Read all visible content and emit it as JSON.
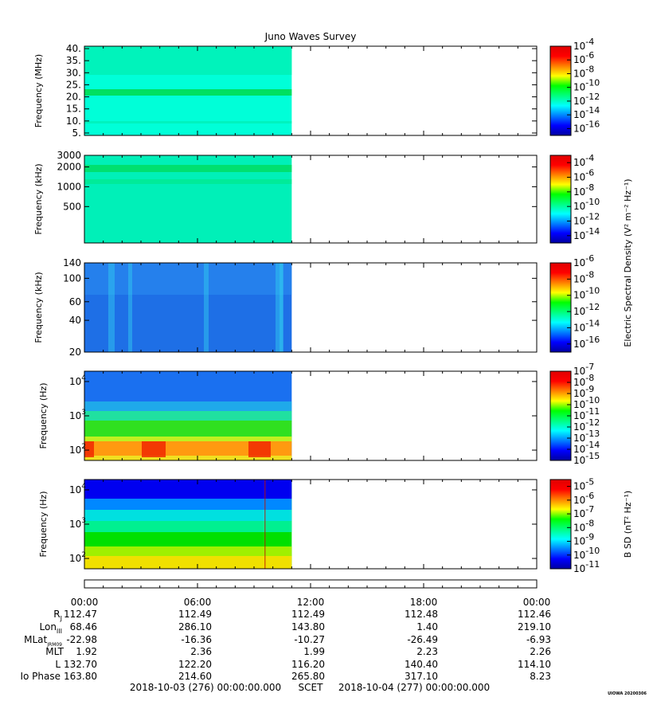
{
  "chart_data": {
    "type": "heatmap",
    "title": "Juno Waves Survey",
    "panels": [
      {
        "ylabel": "Frequency (MHz)",
        "scale": "linear",
        "ylim": [
          4,
          41
        ],
        "ticks": [
          {
            "v": 40,
            "t": "40."
          },
          {
            "v": 35,
            "t": "35."
          },
          {
            "v": 30,
            "t": "30."
          },
          {
            "v": 25,
            "t": "25."
          },
          {
            "v": 20,
            "t": "20."
          },
          {
            "v": 15,
            "t": "15."
          },
          {
            "v": 10,
            "t": "10."
          },
          {
            "v": 5,
            "t": "5."
          }
        ],
        "colorbar": {
          "label": "",
          "range": [
            -17,
            -4
          ],
          "ticks": [
            {
              "exp": -4,
              "t": "-4"
            },
            {
              "exp": -6,
              "t": "-6"
            },
            {
              "exp": -8,
              "t": "-8"
            },
            {
              "exp": -10,
              "t": "-10"
            },
            {
              "exp": -12,
              "t": "-12"
            },
            {
              "exp": -14,
              "t": "-14"
            },
            {
              "exp": -16,
              "t": "-16"
            }
          ]
        }
      },
      {
        "ylabel": "Frequency (kHz)",
        "scale": "log",
        "ylim": [
          140,
          3000
        ],
        "ticks": [
          {
            "v": 3000,
            "t": "3000"
          },
          {
            "v": 2000,
            "t": "2000"
          },
          {
            "v": 1000,
            "t": "1000"
          },
          {
            "v": 500,
            "t": "500"
          }
        ],
        "colorbar": {
          "label": "Electric Spectral Density (V² m⁻² Hz⁻¹)",
          "range": [
            -15,
            -3
          ],
          "ticks": [
            {
              "exp": -4,
              "t": "-4"
            },
            {
              "exp": -6,
              "t": "-6"
            },
            {
              "exp": -8,
              "t": "-8"
            },
            {
              "exp": -10,
              "t": "-10"
            },
            {
              "exp": -12,
              "t": "-12"
            },
            {
              "exp": -14,
              "t": "-14"
            }
          ]
        }
      },
      {
        "ylabel": "Frequency (kHz)",
        "scale": "log",
        "ylim": [
          20,
          140
        ],
        "ticks": [
          {
            "v": 140,
            "t": "140"
          },
          {
            "v": 100,
            "t": "100"
          },
          {
            "v": 60,
            "t": "60"
          },
          {
            "v": 40,
            "t": "40"
          },
          {
            "v": 20,
            "t": "20"
          }
        ],
        "colorbar": {
          "label": "",
          "range": [
            -17,
            -6
          ],
          "ticks": [
            {
              "exp": -6,
              "t": "-6"
            },
            {
              "exp": -8,
              "t": "-8"
            },
            {
              "exp": -10,
              "t": "-10"
            },
            {
              "exp": -12,
              "t": "-12"
            },
            {
              "exp": -14,
              "t": "-14"
            },
            {
              "exp": -16,
              "t": "-16"
            }
          ]
        }
      },
      {
        "ylabel": "Frequency (Hz)",
        "scale": "log",
        "ylim": [
          50,
          20000
        ],
        "ticks": [
          {
            "v": 10000,
            "t": "10",
            "sup": "4"
          },
          {
            "v": 1000,
            "t": "10",
            "sup": "3"
          },
          {
            "v": 100,
            "t": "10",
            "sup": "2"
          }
        ],
        "colorbar": {
          "label": "",
          "range": [
            -15,
            -7
          ],
          "ticks": [
            {
              "exp": -7,
              "t": "-7"
            },
            {
              "exp": -8,
              "t": "-8"
            },
            {
              "exp": -9,
              "t": "-9"
            },
            {
              "exp": -10,
              "t": "-10"
            },
            {
              "exp": -11,
              "t": "-11"
            },
            {
              "exp": -12,
              "t": "-12"
            },
            {
              "exp": -13,
              "t": "-13"
            },
            {
              "exp": -14,
              "t": "-14"
            },
            {
              "exp": -15,
              "t": "-15"
            }
          ]
        }
      },
      {
        "ylabel": "Frequency (Hz)",
        "scale": "log",
        "ylim": [
          50,
          20000
        ],
        "ticks": [
          {
            "v": 10000,
            "t": "10",
            "sup": "4"
          },
          {
            "v": 1000,
            "t": "10",
            "sup": "3"
          },
          {
            "v": 100,
            "t": "10",
            "sup": "2"
          }
        ],
        "colorbar": {
          "label": "B SD (nT² Hz⁻¹)",
          "range": [
            -11,
            -4.5
          ],
          "ticks": [
            {
              "exp": -5,
              "t": "-5"
            },
            {
              "exp": -6,
              "t": "-6"
            },
            {
              "exp": -7,
              "t": "-7"
            },
            {
              "exp": -8,
              "t": "-8"
            },
            {
              "exp": -9,
              "t": "-9"
            },
            {
              "exp": -10,
              "t": "-10"
            },
            {
              "exp": -11,
              "t": "-11"
            }
          ]
        }
      }
    ],
    "time_axis": {
      "tick_labels": [
        "00:00",
        "06:00",
        "12:00",
        "18:00",
        "00:00"
      ],
      "data_end_hours": 11
    },
    "ephemeris": [
      {
        "label": "R",
        "sub": "J",
        "values": [
          "112.47",
          "112.49",
          "112.49",
          "112.48",
          "112.46"
        ]
      },
      {
        "label": "Lon",
        "sub": "III",
        "values": [
          "68.46",
          "286.10",
          "143.80",
          "1.40",
          "219.10"
        ]
      },
      {
        "label": "MLat",
        "sub": "JRM09",
        "values": [
          "-22.98",
          "-16.36",
          "-10.27",
          "-26.49",
          "-6.93"
        ]
      },
      {
        "label": "MLT",
        "sub": "",
        "values": [
          "1.92",
          "2.36",
          "1.99",
          "2.23",
          "2.26"
        ]
      },
      {
        "label": "L",
        "sub": "",
        "values": [
          "132.70",
          "122.20",
          "116.20",
          "140.40",
          "114.10"
        ]
      },
      {
        "label": "Io Phase",
        "sub": "",
        "values": [
          "163.80",
          "214.60",
          "265.80",
          "317.10",
          "8.23"
        ]
      }
    ],
    "footer": {
      "start": "2018-10-03 (276) 00:00:00.000",
      "scet": "SCET",
      "end": "2018-10-04 (277) 00:00:00.000"
    },
    "credit": "UIOWA 20200306",
    "colors": {
      "colormap": [
        "#0000a0",
        "#0000ff",
        "#0080ff",
        "#00ffff",
        "#00ff80",
        "#00ff00",
        "#ffff00",
        "#ff8000",
        "#ff0000",
        "#e00000"
      ]
    }
  }
}
